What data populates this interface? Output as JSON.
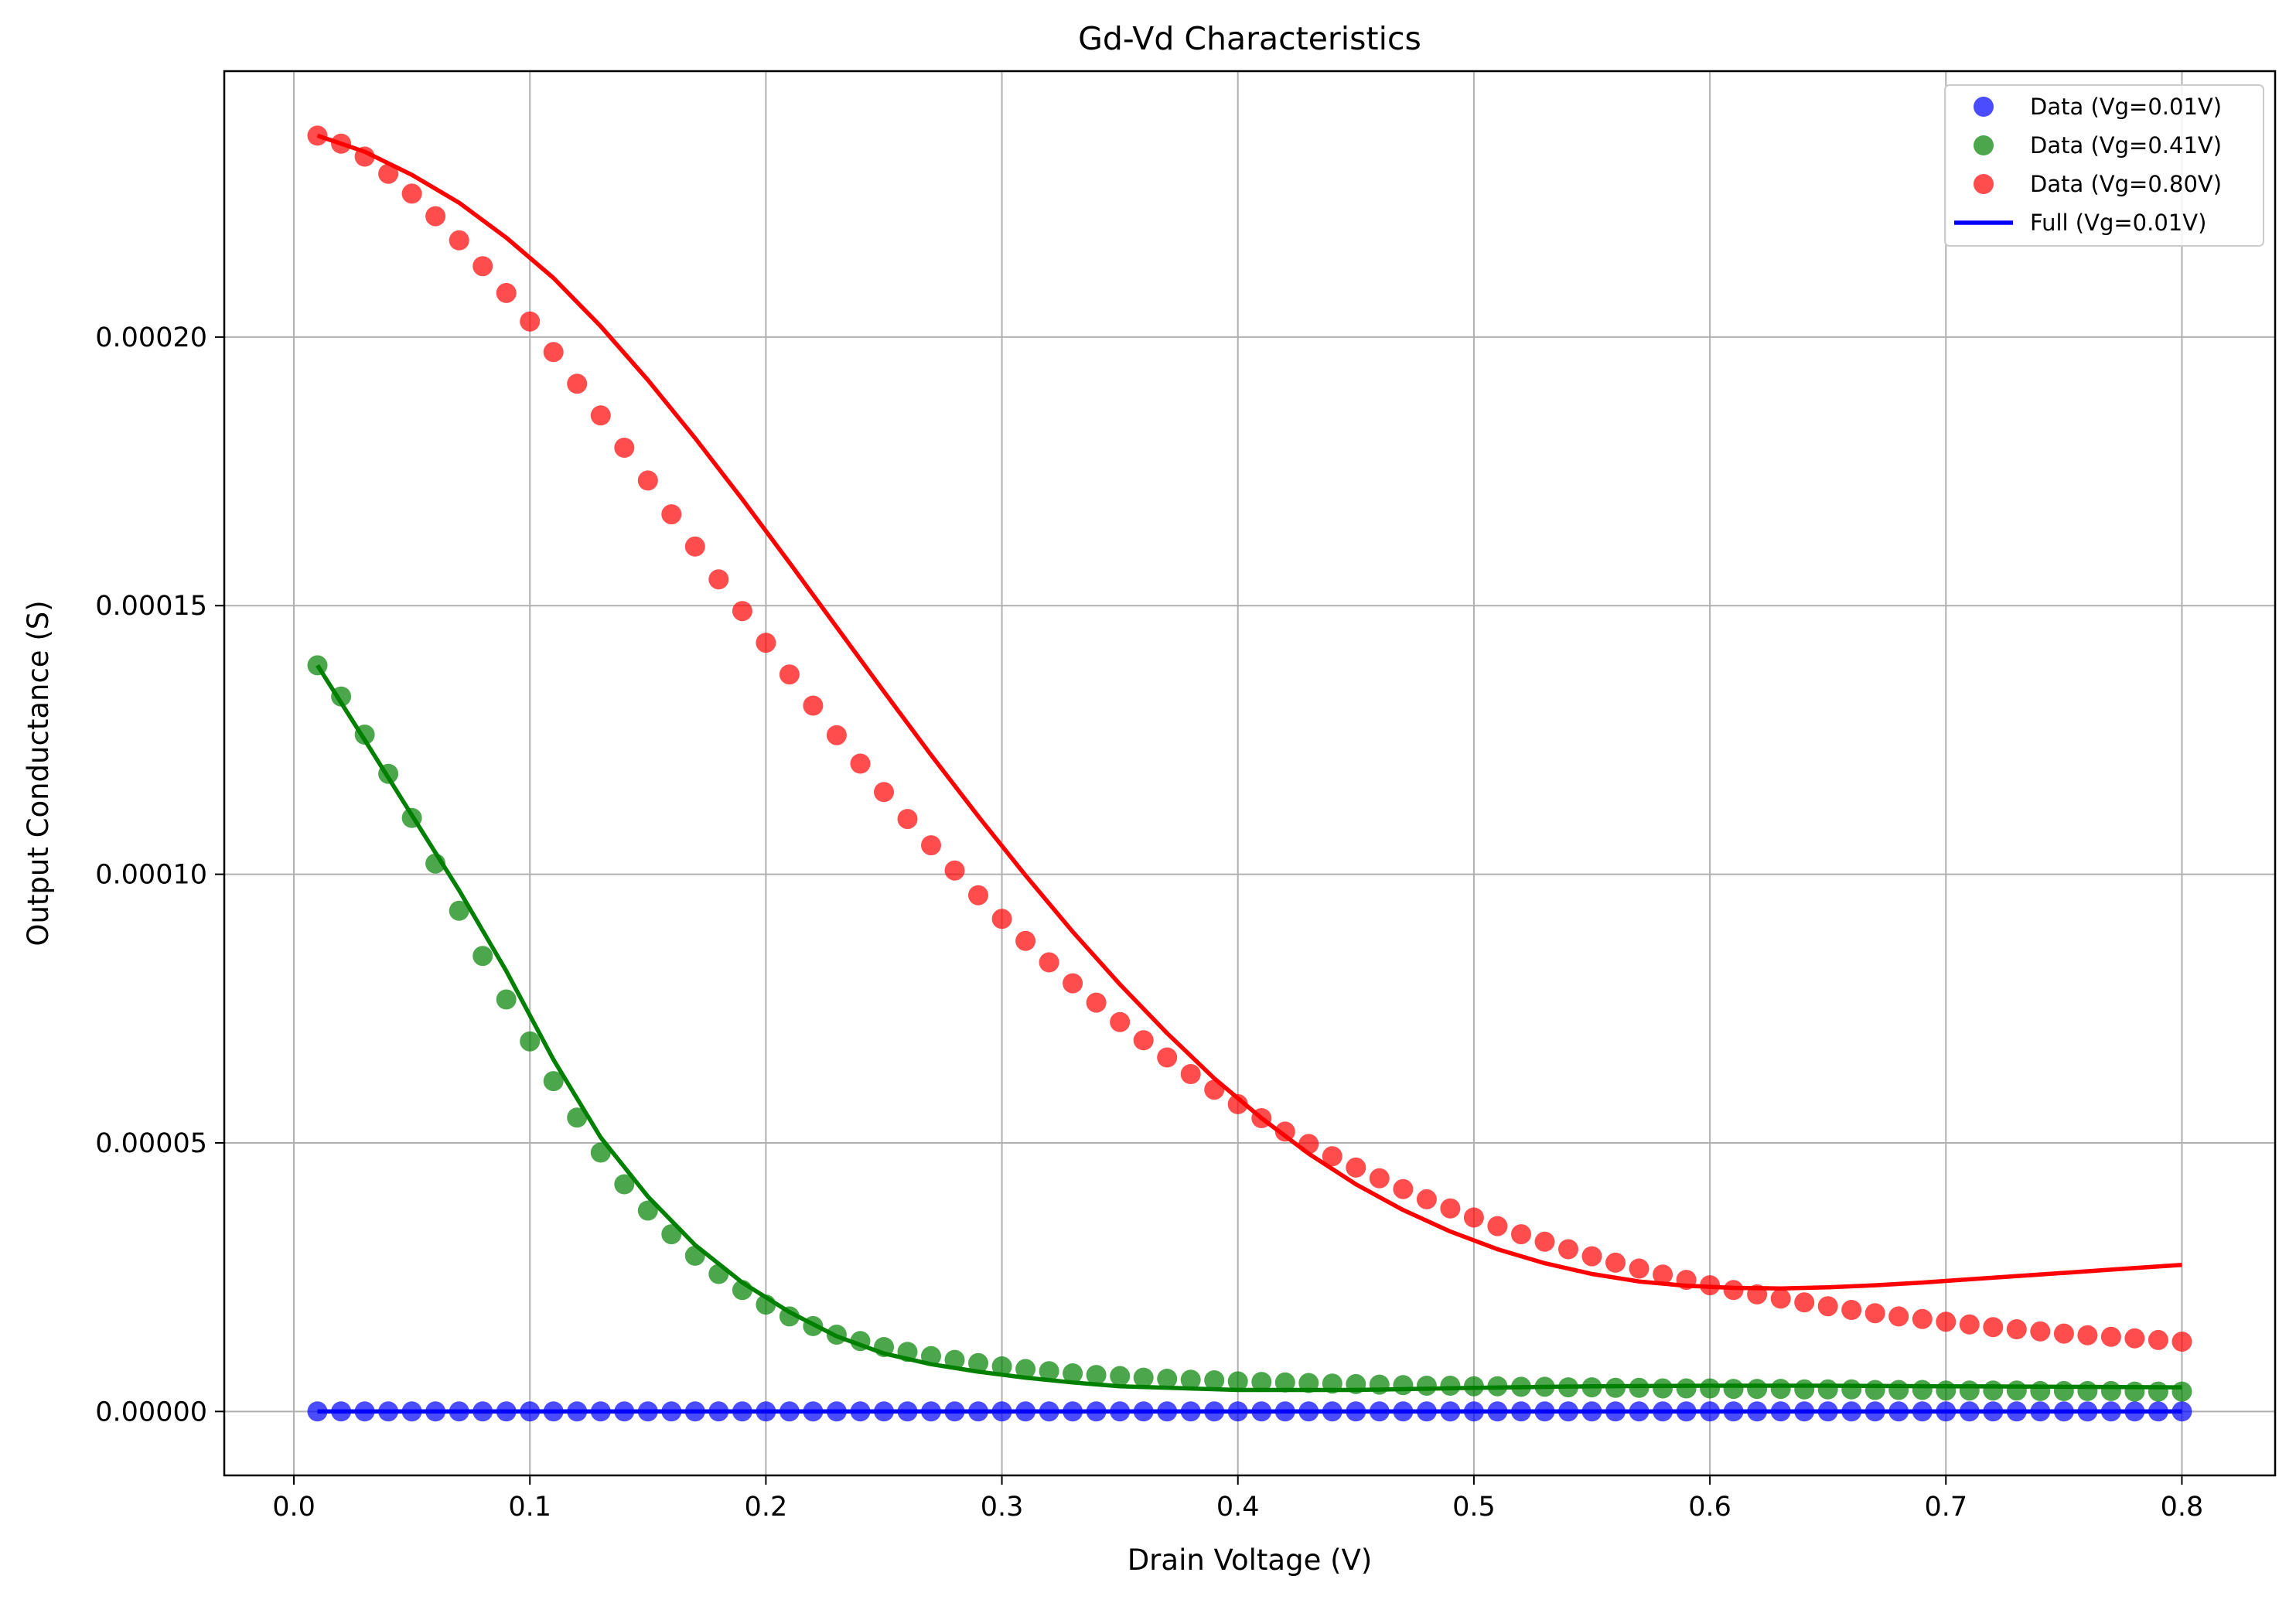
{
  "chart_data": {
    "type": "scatter",
    "title": "Gd-Vd Characteristics",
    "xlabel": "Drain Voltage (V)",
    "ylabel": "Output Conductance (S)",
    "xlim": [
      -0.0295,
      0.8395
    ],
    "ylim": [
      -1.19e-05,
      0.0002495
    ],
    "xticks": [
      0.0,
      0.1,
      0.2,
      0.3,
      0.4,
      0.5,
      0.6,
      0.7,
      0.8
    ],
    "xtick_labels": [
      "0.0",
      "0.1",
      "0.2",
      "0.3",
      "0.4",
      "0.5",
      "0.6",
      "0.7",
      "0.8"
    ],
    "yticks": [
      0.0,
      5e-05,
      0.0001,
      0.00015,
      0.0002
    ],
    "ytick_labels": [
      "0.00000",
      "0.00005",
      "0.00010",
      "0.00015",
      "0.00020"
    ],
    "grid": true,
    "legend_position": "top-right",
    "x": [
      0.01,
      0.02,
      0.03,
      0.04,
      0.05,
      0.06,
      0.07,
      0.08,
      0.09,
      0.1,
      0.11,
      0.12,
      0.13,
      0.14,
      0.15,
      0.16,
      0.17,
      0.18,
      0.19,
      0.2,
      0.21,
      0.22,
      0.23,
      0.24,
      0.25,
      0.26,
      0.27,
      0.28,
      0.29,
      0.3,
      0.31,
      0.32,
      0.33,
      0.34,
      0.35,
      0.36,
      0.37,
      0.38,
      0.39,
      0.4,
      0.41,
      0.42,
      0.43,
      0.44,
      0.45,
      0.46,
      0.47,
      0.48,
      0.49,
      0.5,
      0.51,
      0.52,
      0.53,
      0.54,
      0.55,
      0.56,
      0.57,
      0.58,
      0.59,
      0.6,
      0.61,
      0.62,
      0.63,
      0.64,
      0.65,
      0.66,
      0.67,
      0.68,
      0.69,
      0.7,
      0.71,
      0.72,
      0.73,
      0.74,
      0.75,
      0.76,
      0.77,
      0.78,
      0.79,
      0.8
    ],
    "series": [
      {
        "name": "Data (Vg=0.01V)",
        "kind": "scatter",
        "color": "#0000ff",
        "values": [
          0,
          0,
          0,
          0,
          0,
          0,
          0,
          0,
          0,
          0,
          0,
          0,
          0,
          0,
          0,
          0,
          0,
          0,
          0,
          0,
          0,
          0,
          0,
          0,
          0,
          0,
          0,
          0,
          0,
          0,
          0,
          0,
          0,
          0,
          0,
          0,
          0,
          0,
          0,
          0,
          0,
          0,
          0,
          0,
          0,
          0,
          0,
          0,
          0,
          0,
          0,
          0,
          0,
          0,
          0,
          0,
          0,
          0,
          0,
          0,
          0,
          0,
          0,
          0,
          0,
          0,
          0,
          0,
          0,
          0,
          0,
          0,
          0,
          0,
          0,
          0,
          0,
          0,
          0,
          0
        ]
      },
      {
        "name": "Data (Vg=0.41V)",
        "kind": "scatter",
        "color": "#008000",
        "values": [
          0.0001389,
          0.0001331,
          0.000126,
          0.0001187,
          0.0001105,
          0.000102,
          9.32e-05,
          8.48e-05,
          7.67e-05,
          6.89e-05,
          6.15e-05,
          5.47e-05,
          4.82e-05,
          4.23e-05,
          3.74e-05,
          3.3e-05,
          2.9e-05,
          2.56e-05,
          2.26e-05,
          1.99e-05,
          1.77e-05,
          1.59e-05,
          1.43e-05,
          1.31e-05,
          1.2e-05,
          1.11e-05,
          1.03e-05,
          9.6e-06,
          9e-06,
          8.4e-06,
          7.9e-06,
          7.5e-06,
          7.1e-06,
          6.8e-06,
          6.6e-06,
          6.3e-06,
          6.1e-06,
          5.9e-06,
          5.8e-06,
          5.6e-06,
          5.5e-06,
          5.4e-06,
          5.3e-06,
          5.2e-06,
          5.1e-06,
          5e-06,
          4.9e-06,
          4.8e-06,
          4.8e-06,
          4.7e-06,
          4.7e-06,
          4.6e-06,
          4.6e-06,
          4.5e-06,
          4.5e-06,
          4.4e-06,
          4.4e-06,
          4.3e-06,
          4.3e-06,
          4.3e-06,
          4.2e-06,
          4.2e-06,
          4.2e-06,
          4.1e-06,
          4.1e-06,
          4.1e-06,
          4e-06,
          4e-06,
          4e-06,
          3.9e-06,
          3.9e-06,
          3.9e-06,
          3.9e-06,
          3.8e-06,
          3.8e-06,
          3.8e-06,
          3.8e-06,
          3.7e-06,
          3.7e-06,
          3.7e-06
        ]
      },
      {
        "name": "Data (Vg=0.80V)",
        "kind": "scatter",
        "color": "#ff0000",
        "values": [
          0.0002375,
          0.000236,
          0.0002336,
          0.0002304,
          0.0002267,
          0.0002225,
          0.000218,
          0.0002132,
          0.0002082,
          0.0002029,
          0.0001972,
          0.0001913,
          0.0001854,
          0.0001794,
          0.0001733,
          0.000167,
          0.000161,
          0.0001549,
          0.000149,
          0.0001431,
          0.0001372,
          0.0001314,
          0.0001259,
          0.0001206,
          0.0001153,
          0.0001103,
          0.0001054,
          0.0001007,
          9.61e-05,
          9.17e-05,
          8.76e-05,
          8.36e-05,
          7.97e-05,
          7.61e-05,
          7.25e-05,
          6.91e-05,
          6.59e-05,
          6.28e-05,
          5.99e-05,
          5.72e-05,
          5.46e-05,
          5.21e-05,
          4.98e-05,
          4.75e-05,
          4.54e-05,
          4.34e-05,
          4.14e-05,
          3.95e-05,
          3.78e-05,
          3.61e-05,
          3.45e-05,
          3.3e-05,
          3.16e-05,
          3.02e-05,
          2.89e-05,
          2.77e-05,
          2.66e-05,
          2.55e-05,
          2.45e-05,
          2.35e-05,
          2.26e-05,
          2.18e-05,
          2.1e-05,
          2.03e-05,
          1.96e-05,
          1.89e-05,
          1.83e-05,
          1.77e-05,
          1.72e-05,
          1.67e-05,
          1.62e-05,
          1.57e-05,
          1.53e-05,
          1.49e-05,
          1.45e-05,
          1.42e-05,
          1.39e-05,
          1.36e-05,
          1.33e-05,
          1.3e-05
        ]
      },
      {
        "name": "Full (Vg=0.01V)",
        "kind": "line",
        "color": "#0000ff",
        "x": [
          0.01,
          0.8
        ],
        "values": [
          0,
          0
        ]
      },
      {
        "kind": "line",
        "color": "#008000",
        "x": [
          0.01,
          0.03,
          0.05,
          0.07,
          0.09,
          0.11,
          0.13,
          0.15,
          0.17,
          0.19,
          0.21,
          0.23,
          0.25,
          0.27,
          0.29,
          0.31,
          0.33,
          0.35,
          0.4,
          0.45,
          0.5,
          0.55,
          0.6,
          0.65,
          0.7,
          0.75,
          0.8
        ],
        "values": [
          0.0001389,
          0.000125,
          0.000111,
          9.7e-05,
          8.2e-05,
          6.55e-05,
          5.1e-05,
          4e-05,
          3.1e-05,
          2.4e-05,
          1.85e-05,
          1.4e-05,
          1.08e-05,
          8.8e-06,
          7.4e-06,
          6.3e-06,
          5.4e-06,
          4.7e-06,
          4e-06,
          4e-06,
          4.4e-06,
          4.7e-06,
          4.8e-06,
          4.8e-06,
          4.7e-06,
          4.6e-06,
          4.5e-06
        ]
      },
      {
        "kind": "line",
        "color": "#ff0000",
        "x": [
          0.01,
          0.03,
          0.05,
          0.07,
          0.09,
          0.11,
          0.13,
          0.15,
          0.17,
          0.19,
          0.21,
          0.23,
          0.25,
          0.27,
          0.29,
          0.31,
          0.33,
          0.35,
          0.37,
          0.39,
          0.41,
          0.43,
          0.45,
          0.47,
          0.49,
          0.51,
          0.53,
          0.55,
          0.57,
          0.59,
          0.61,
          0.63,
          0.65,
          0.67,
          0.69,
          0.71,
          0.73,
          0.75,
          0.77,
          0.8
        ],
        "values": [
          0.0002375,
          0.0002345,
          0.0002302,
          0.000225,
          0.0002185,
          0.000211,
          0.000202,
          0.000192,
          0.0001812,
          0.0001698,
          0.000158,
          0.000146,
          0.000134,
          0.0001222,
          0.0001108,
          9.98e-05,
          8.93e-05,
          7.95e-05,
          7.04e-05,
          6.2e-05,
          5.46e-05,
          4.8e-05,
          4.23e-05,
          3.75e-05,
          3.35e-05,
          3.02e-05,
          2.76e-05,
          2.56e-05,
          2.42e-05,
          2.34e-05,
          2.3e-05,
          2.29e-05,
          2.31e-05,
          2.35e-05,
          2.4e-05,
          2.46e-05,
          2.52e-05,
          2.58e-05,
          2.64e-05,
          2.73e-05
        ]
      }
    ]
  }
}
